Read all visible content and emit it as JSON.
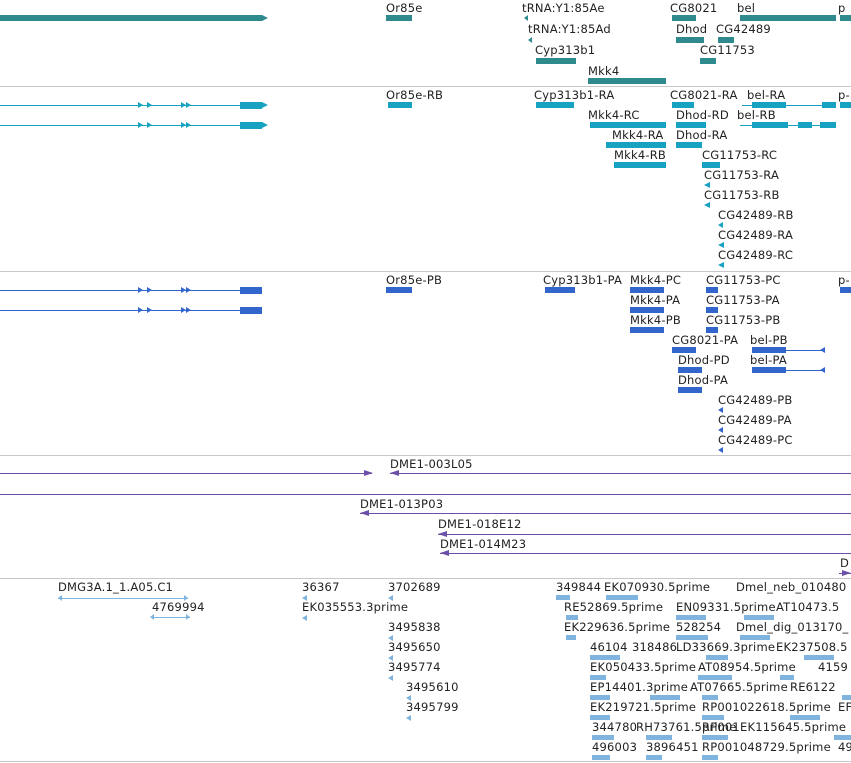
{
  "colors": {
    "gene": "#2f8a8e",
    "transcript": "#16a2c0",
    "protein": "#3366cc",
    "clone": "#6b4fa8",
    "est": "#7fb4e0",
    "divider": "#c8c8c8",
    "text": "#222222"
  },
  "tracks": {
    "genes": {
      "labels": [
        "Or85e",
        "tRNA:Y1:85Ae",
        "tRNA:Y1:85Ad",
        "Cyp313b1",
        "Mkk4",
        "CG8021",
        "bel",
        "p",
        "Dhod",
        "CG42489",
        "CG11753"
      ]
    },
    "transcripts": {
      "labels": [
        "Or85e-RB",
        "Cyp313b1-RA",
        "CG8021-RA",
        "bel-RA",
        "p-",
        "Mkk4-RC",
        "Dhod-RD",
        "bel-RB",
        "Mkk4-RA",
        "Dhod-RA",
        "Mkk4-RB",
        "CG11753-RC",
        "CG11753-RA",
        "CG11753-RB",
        "CG42489-RB",
        "CG42489-RA",
        "CG42489-RC"
      ]
    },
    "proteins": {
      "labels": [
        "Or85e-PB",
        "Cyp313b1-PA",
        "Mkk4-PC",
        "CG11753-PC",
        "p-",
        "Mkk4-PA",
        "CG11753-PA",
        "Mkk4-PB",
        "CG11753-PB",
        "CG8021-PA",
        "bel-PB",
        "Dhod-PD",
        "bel-PA",
        "Dhod-PA",
        "CG42489-PB",
        "CG42489-PA",
        "CG42489-PC"
      ]
    },
    "clones": {
      "labels": [
        "DME1-003L05",
        "DME1-013P03",
        "DME1-018E12",
        "DME1-014M23",
        "D"
      ]
    },
    "ests": {
      "labels": [
        "DMG3A.1_1.A05.C1",
        "36367",
        "3702689",
        "349844",
        "EK070930.5prime",
        "Dmel_neb_010480",
        "4769994",
        "EK035553.3prime",
        "RE52869.5prime",
        "EN09331.5prime",
        "AT10473.5",
        "3495838",
        "EK229636.5prime",
        "528254",
        "Dmel_dig_013170_",
        "3495650",
        "46104",
        "318486",
        "LD33669.3prime",
        "EK237508.5",
        "3495774",
        "EK050433.5prime",
        "AT08954.5prime",
        "4159",
        "3495610",
        "EP14401.3prime",
        "AT07665.5prime",
        "RE6122",
        "3495799",
        "EK219721.5prime",
        "RP001022618.5prime",
        "EF",
        "344780",
        "RH73761.5prime",
        "RP001",
        "EK115645.5prime",
        "496003",
        "3896451",
        "RP001048729.5prime",
        "49"
      ]
    }
  }
}
